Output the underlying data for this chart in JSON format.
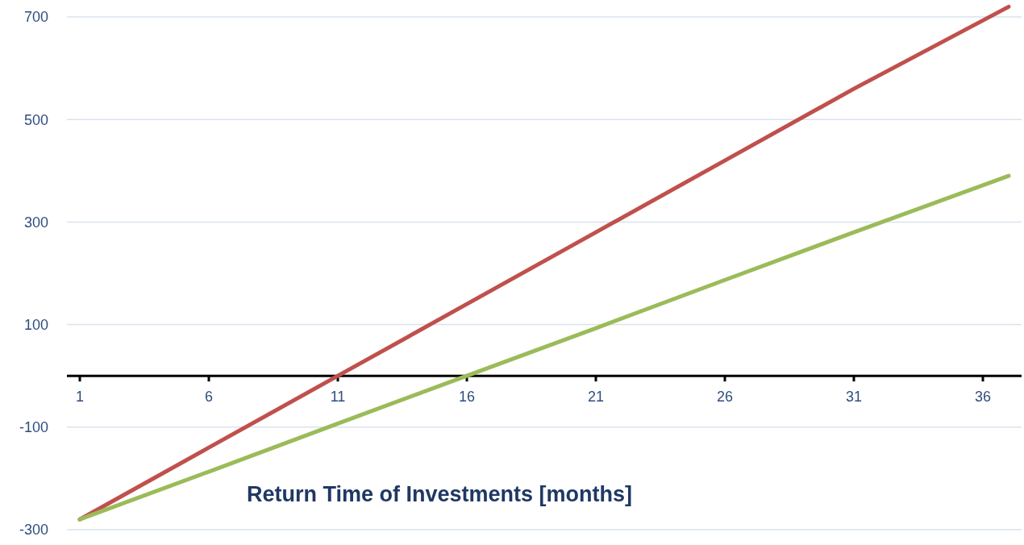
{
  "chart_data": {
    "type": "line",
    "xlabel": "Return Time of Investments [months]",
    "xlim": [
      0.5,
      37.5
    ],
    "xticks": [
      1,
      6,
      11,
      16,
      21,
      26,
      31,
      36
    ],
    "ylim": [
      -330,
      730
    ],
    "yticks": [
      700,
      500,
      300,
      100,
      -100,
      -300
    ],
    "grid": "y",
    "marker": "none",
    "line_style": "solid",
    "series": [
      {
        "color": "#c0504d",
        "x": [
          1,
          6,
          11,
          16,
          21,
          26,
          31,
          37
        ],
        "values": [
          -280,
          -140,
          0,
          140,
          280,
          420,
          560,
          720
        ]
      },
      {
        "color": "#9bbb59",
        "x": [
          1,
          6,
          11,
          16,
          21,
          26,
          31,
          37
        ],
        "values": [
          -280,
          -187,
          -93,
          0,
          93,
          187,
          280,
          390
        ]
      }
    ]
  }
}
